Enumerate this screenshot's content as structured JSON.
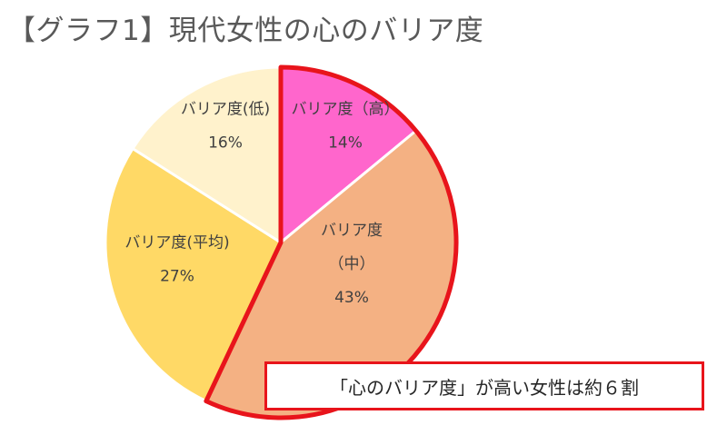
{
  "title": "【グラフ1】現代女性の心のバリア度",
  "callout": "「心のバリア度」が高い女性は約６割",
  "chart_data": {
    "type": "pie",
    "start_angle_deg": 0,
    "direction": "clockwise",
    "slices": [
      {
        "label_lines": [
          "バリア度（高）"
        ],
        "value": 14,
        "value_label": "14%",
        "color": "#ff66cc"
      },
      {
        "label_lines": [
          "バリア度",
          "（中）"
        ],
        "value": 43,
        "value_label": "43%",
        "color": "#f4b183"
      },
      {
        "label_lines": [
          "バリア度(平均)"
        ],
        "value": 27,
        "value_label": "27%",
        "color": "#ffd966"
      },
      {
        "label_lines": [
          "バリア度(低)"
        ],
        "value": 16,
        "value_label": "16%",
        "color": "#fff2cc"
      }
    ],
    "highlight_slices": [
      0,
      1
    ],
    "highlight_color": "#e8141b"
  }
}
